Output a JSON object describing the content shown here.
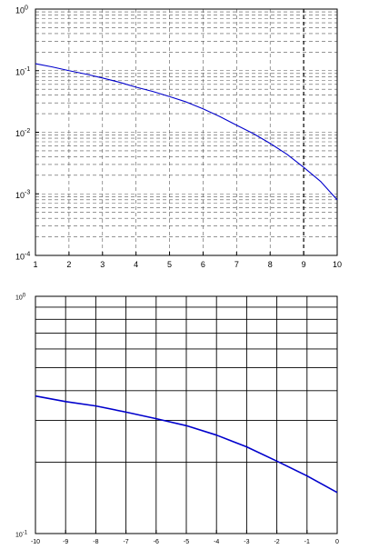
{
  "chart_data": [
    {
      "type": "line",
      "title": "",
      "xlabel": "",
      "ylabel": "",
      "x_scale": "linear",
      "y_scale": "log",
      "xlim": [
        1,
        10
      ],
      "ylim": [
        0.0001,
        1
      ],
      "grid": true,
      "grid_style": "dashed",
      "highlighted_gridline_x": 9,
      "x_ticks": [
        1,
        2,
        3,
        4,
        5,
        6,
        7,
        8,
        9,
        10
      ],
      "x_tick_labels": [
        "1",
        "2",
        "3",
        "4",
        "5",
        "6",
        "7",
        "8",
        "9",
        "10"
      ],
      "y_ticks": [
        0.0001,
        0.001,
        0.01,
        0.1,
        1
      ],
      "y_tick_labels": [
        {
          "base": "10",
          "exp": "-4"
        },
        {
          "base": "10",
          "exp": "-3"
        },
        {
          "base": "10",
          "exp": "-2"
        },
        {
          "base": "10",
          "exp": "-1"
        },
        {
          "base": "10",
          "exp": "0"
        }
      ],
      "series": [
        {
          "color": "#0000cc",
          "x": [
            1,
            1.5,
            2,
            2.5,
            3,
            3.5,
            4,
            4.5,
            5,
            5.5,
            6,
            6.5,
            7,
            7.5,
            8,
            8.5,
            9,
            9.5,
            10
          ],
          "y": [
            0.13,
            0.115,
            0.1,
            0.088,
            0.076,
            0.065,
            0.054,
            0.046,
            0.038,
            0.031,
            0.024,
            0.018,
            0.013,
            0.0095,
            0.0066,
            0.0044,
            0.0027,
            0.0016,
            0.0008
          ]
        }
      ]
    },
    {
      "type": "line",
      "title": "",
      "xlabel": "",
      "ylabel": "",
      "x_scale": "linear",
      "y_scale": "log",
      "xlim": [
        -10,
        0
      ],
      "ylim": [
        0.1,
        1
      ],
      "grid": true,
      "grid_style": "solid",
      "x_ticks": [
        -10,
        -9,
        -8,
        -7,
        -6,
        -5,
        -4,
        -3,
        -2,
        -1,
        0
      ],
      "x_tick_labels": [
        "-10",
        "-9",
        "-8",
        "-7",
        "-6",
        "-5",
        "-4",
        "-3",
        "-2",
        "-1",
        "0"
      ],
      "y_ticks": [
        0.1,
        1
      ],
      "y_tick_labels": [
        {
          "base": "10",
          "exp": "-1"
        },
        {
          "base": "10",
          "exp": "0"
        }
      ],
      "series": [
        {
          "color": "#0000cc",
          "x": [
            -10,
            -9,
            -8,
            -7,
            -6,
            -5,
            -4,
            -3,
            -2,
            -1,
            0
          ],
          "y": [
            0.38,
            0.36,
            0.345,
            0.325,
            0.305,
            0.285,
            0.26,
            0.232,
            0.202,
            0.175,
            0.149
          ]
        }
      ]
    }
  ]
}
